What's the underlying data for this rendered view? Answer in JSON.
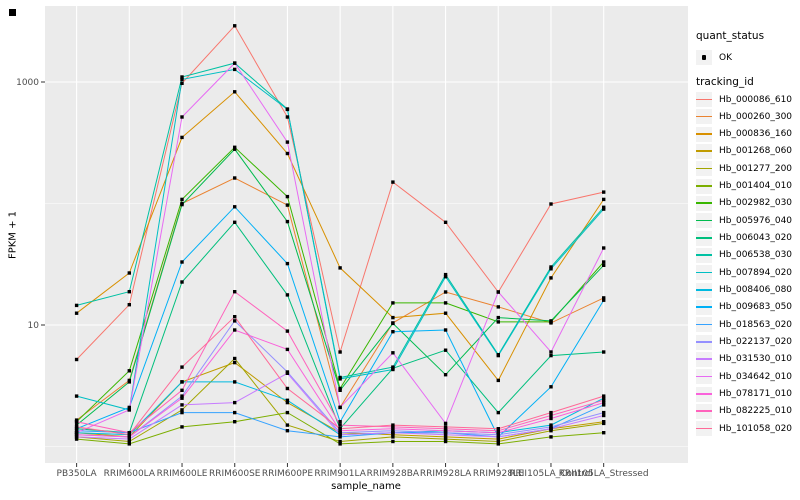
{
  "figure": {
    "background": "#FFFFFF"
  },
  "panel": {
    "background": "#EBEBEB",
    "grid_color": "#FFFFFF",
    "tick_mark_color": "#333333",
    "tick_label_color": "#4D4D4D",
    "point_color": "#000000"
  },
  "legend": {
    "quant_status": {
      "title": "quant_status",
      "items": [
        {
          "label": "OK",
          "marker": "black-point"
        }
      ]
    },
    "tracking_id": {
      "title": "tracking_id"
    }
  },
  "chart_data": {
    "type": "line",
    "title": "",
    "xlabel": "sample_name",
    "ylabel": "FPKM + 1",
    "y_scale": "log10",
    "ylim": [
      0.73,
      4200
    ],
    "y_major_ticks": [
      10,
      1000
    ],
    "y_minor_gridlines": [
      1,
      100
    ],
    "grid": true,
    "legend_position": "right",
    "point_shape": "small-black-square",
    "categories": [
      "PB350LA",
      "RRIM600LA",
      "RRIM600LE",
      "RRIM600SE",
      "RRIM600PE",
      "RRIM901LA",
      "RRIM928BA",
      "RRIM928LA",
      "RRIM928LE",
      "RRII105LA_Control",
      "RRII105LA_Stressed"
    ],
    "series": [
      {
        "name": "Hb_000086_610",
        "color": "#F8766D",
        "values": [
          5.2,
          14.7,
          975,
          2900,
          515,
          6.0,
          150,
          70,
          18.7,
          99,
          124
        ]
      },
      {
        "name": "Hb_000260_300",
        "color": "#EA8331",
        "values": [
          1.65,
          3.5,
          100,
          162,
          97,
          2.1,
          10.4,
          18.7,
          14.1,
          10.4,
          16.7
        ]
      },
      {
        "name": "Hb_000836_160",
        "color": "#D89000",
        "values": [
          12.5,
          26.8,
          350,
          830,
          258,
          29.5,
          11.5,
          12.5,
          3.5,
          24.4,
          108
        ]
      },
      {
        "name": "Hb_001268_060",
        "color": "#C09B00",
        "values": [
          1.3,
          1.2,
          3.4,
          4.9,
          2.3,
          1.3,
          1.25,
          1.2,
          1.15,
          1.4,
          1.6
        ]
      },
      {
        "name": "Hb_001277_200",
        "color": "#A3A500",
        "values": [
          1.2,
          1.1,
          2.0,
          5.3,
          1.5,
          1.1,
          1.2,
          1.15,
          1.1,
          1.35,
          1.55
        ]
      },
      {
        "name": "Hb_001404_010",
        "color": "#7CAE00",
        "values": [
          1.15,
          1.05,
          1.45,
          1.6,
          1.9,
          1.05,
          1.1,
          1.1,
          1.05,
          1.2,
          1.3
        ]
      },
      {
        "name": "Hb_002982_030",
        "color": "#39B600",
        "values": [
          1.6,
          4.2,
          108,
          290,
          114,
          3.0,
          15.2,
          15.2,
          10.6,
          10.6,
          33
        ]
      },
      {
        "name": "Hb_005976_040",
        "color": "#00BB4E",
        "values": [
          1.5,
          3.4,
          98,
          280,
          71,
          2.9,
          10.3,
          3.9,
          11.5,
          10.8,
          31
        ]
      },
      {
        "name": "Hb_006043_020",
        "color": "#00BF7D",
        "values": [
          1.4,
          1.3,
          22.6,
          70,
          17.7,
          1.4,
          4.4,
          6.2,
          1.9,
          5.6,
          6.0
        ]
      },
      {
        "name": "Hb_006538_030",
        "color": "#00C1A3",
        "values": [
          14.5,
          18.8,
          1100,
          1430,
          600,
          3.7,
          4.5,
          26,
          5.7,
          30,
          93
        ]
      },
      {
        "name": "Hb_007894_020",
        "color": "#00BFC4",
        "values": [
          2.6,
          2.0,
          1050,
          1270,
          595,
          3.6,
          4.3,
          25,
          5.6,
          29,
          90
        ]
      },
      {
        "name": "Hb_008406_080",
        "color": "#00BAE0",
        "values": [
          1.3,
          1.25,
          3.4,
          3.4,
          2.4,
          1.25,
          1.3,
          1.35,
          1.3,
          1.5,
          2.5
        ]
      },
      {
        "name": "Hb_009683_050",
        "color": "#00B0F6",
        "values": [
          1.4,
          2.1,
          33,
          94,
          32,
          1.6,
          8.8,
          9.1,
          1.2,
          3.1,
          16
        ]
      },
      {
        "name": "Hb_018563_020",
        "color": "#35A2FF",
        "values": [
          1.35,
          1.3,
          1.9,
          1.9,
          1.35,
          1.2,
          1.3,
          1.3,
          1.2,
          1.4,
          2.2
        ]
      },
      {
        "name": "Hb_022137_020",
        "color": "#9590FF",
        "values": [
          1.25,
          1.2,
          2.6,
          10.8,
          4.1,
          1.3,
          1.35,
          1.3,
          1.25,
          1.45,
          1.9
        ]
      },
      {
        "name": "Hb_031530_010",
        "color": "#C77CFF",
        "values": [
          1.2,
          1.15,
          2.2,
          2.3,
          4.0,
          1.25,
          1.3,
          1.25,
          1.2,
          1.4,
          1.8
        ]
      },
      {
        "name": "Hb_034642_010",
        "color": "#E76BF3",
        "values": [
          1.3,
          2.0,
          515,
          1430,
          320,
          2.1,
          5.9,
          1.55,
          18.7,
          6.0,
          43
        ]
      },
      {
        "name": "Hb_078171_010",
        "color": "#FA62DB",
        "values": [
          1.25,
          1.2,
          2.5,
          9.1,
          6.3,
          1.35,
          1.4,
          1.35,
          1.3,
          1.7,
          2.3
        ]
      },
      {
        "name": "Hb_082225_010",
        "color": "#FF62BC",
        "values": [
          1.6,
          1.3,
          2.9,
          18.8,
          8.9,
          1.5,
          1.45,
          1.4,
          1.35,
          1.8,
          2.4
        ]
      },
      {
        "name": "Hb_101058_020",
        "color": "#FF6A98",
        "values": [
          1.45,
          1.25,
          4.5,
          11.7,
          3.0,
          1.4,
          1.5,
          1.45,
          1.4,
          1.9,
          2.6
        ]
      }
    ]
  }
}
